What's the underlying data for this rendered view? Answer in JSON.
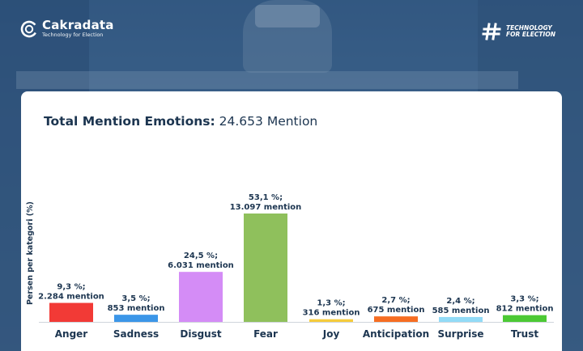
{
  "brand": {
    "name": "Cakradata",
    "tagline": "Technology for Election",
    "right_line1": "TECHNOLOGY",
    "right_line2": "FOR ELECTION"
  },
  "colors": {
    "title": "#1c3550",
    "axis": "#cfd5db"
  },
  "chart_data": {
    "type": "bar",
    "title_bold": "Total Mention Emotions:",
    "title_rest": " 24.653 Mention",
    "ylabel": "Persen per kategori (%)",
    "ylim": [
      0,
      60
    ],
    "categories": [
      "Anger",
      "Sadness",
      "Disgust",
      "Fear",
      "Joy",
      "Anticipation",
      "Surprise",
      "Trust"
    ],
    "values": [
      9.3,
      3.5,
      24.5,
      53.1,
      1.3,
      2.7,
      2.4,
      3.3
    ],
    "mentions": [
      2284,
      853,
      6031,
      13097,
      316,
      675,
      585,
      812
    ],
    "label_pct": [
      "9,3 %;",
      "3,5 %;",
      "24,5 %;",
      "53,1 %;",
      "1,3 %;",
      "2,7 %;",
      "2,4 %;",
      "3,3 %;"
    ],
    "label_mention": [
      "2.284 mention",
      "853 mention",
      "6.031 mention",
      "13.097 mention",
      "316 mention",
      "675 mention",
      "585 mention",
      "812 mention"
    ],
    "bar_colors": [
      "#f23a36",
      "#3b96e8",
      "#d48cf6",
      "#8fc05c",
      "#f6cc3c",
      "#f66d22",
      "#92dbf7",
      "#4cc934"
    ]
  }
}
